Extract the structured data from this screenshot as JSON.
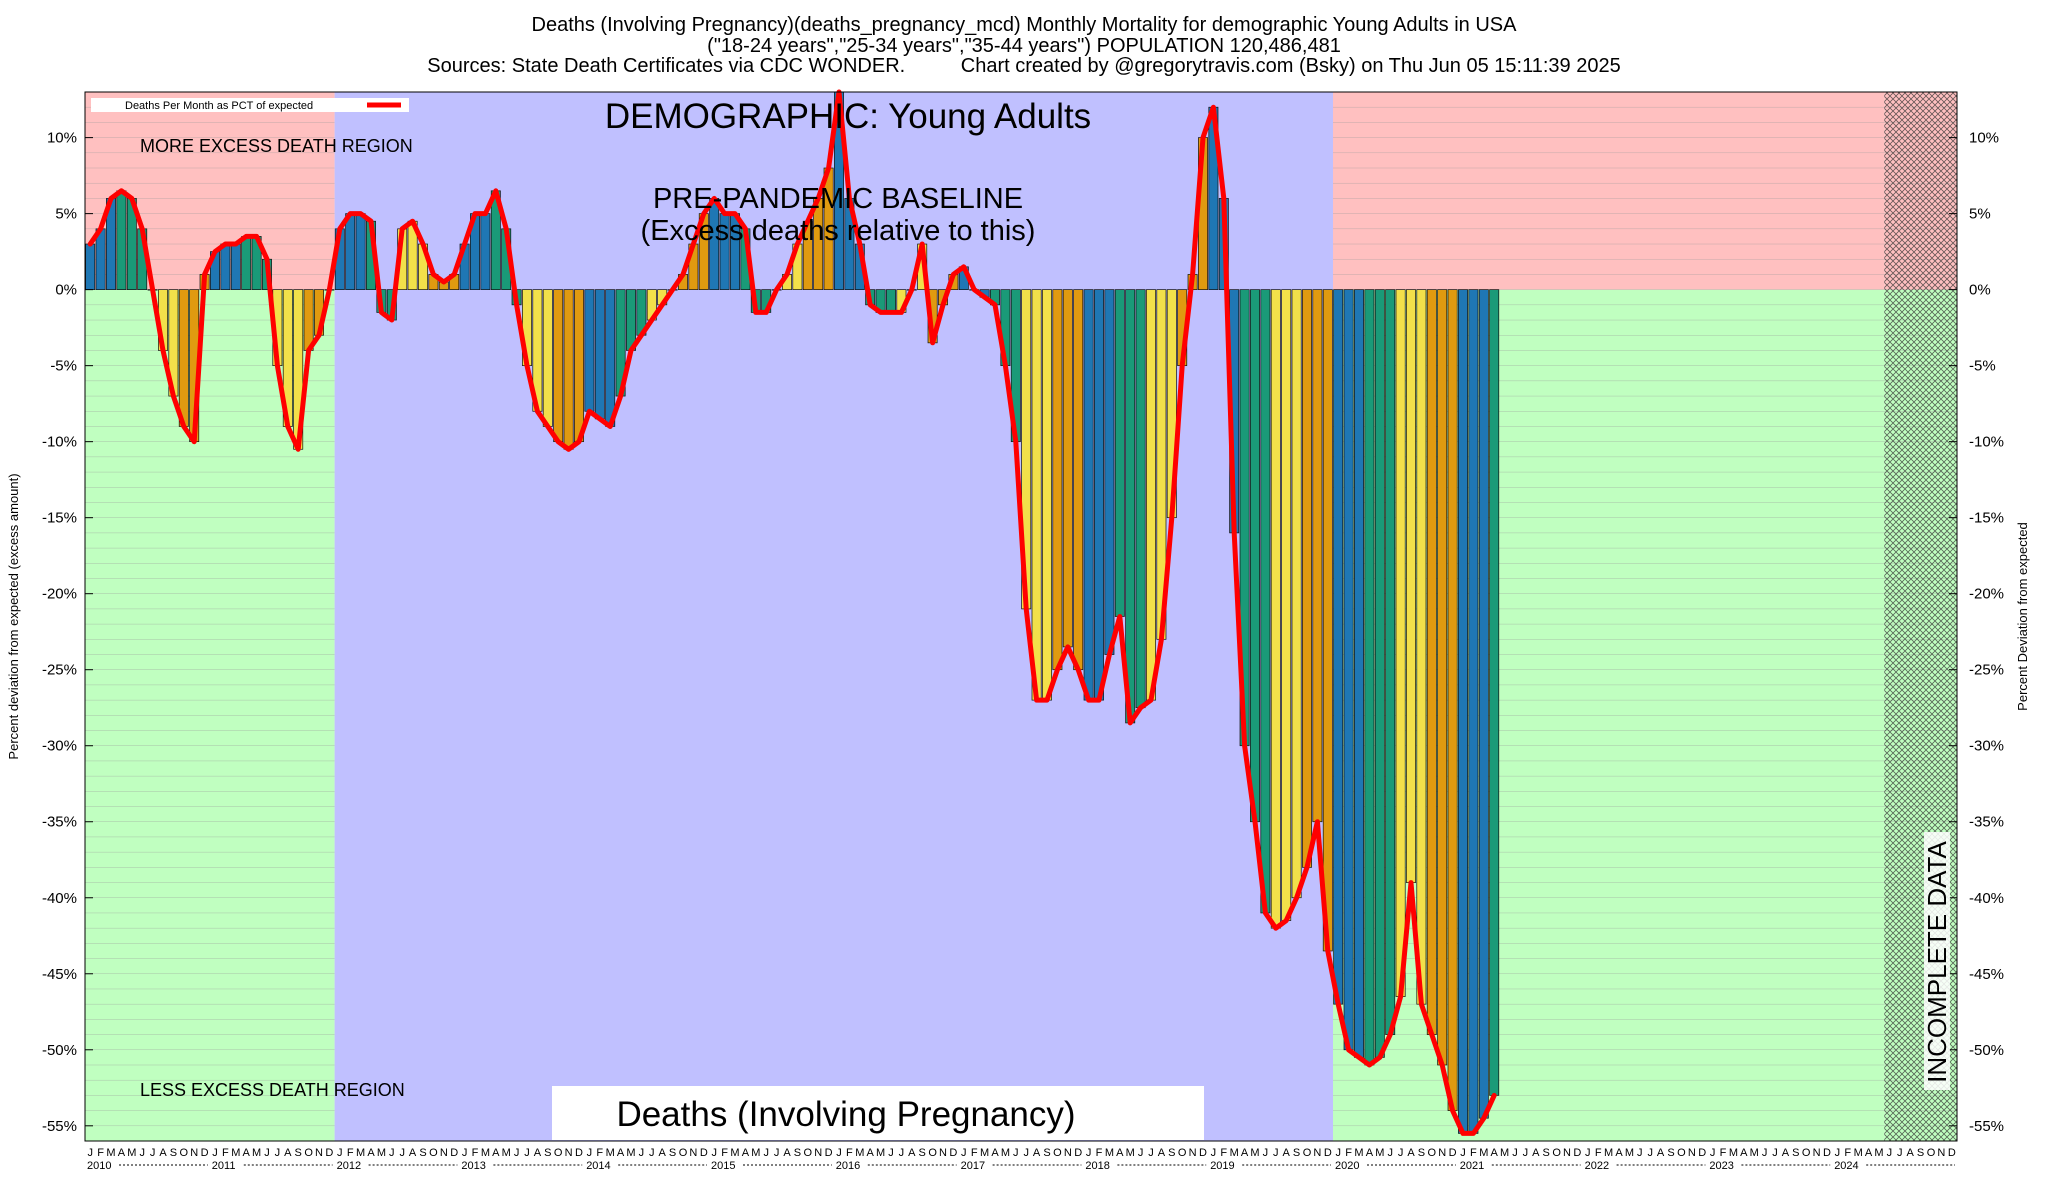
{
  "header": {
    "title_line1": "Deaths (Involving Pregnancy)(deaths_pregnancy_mcd) Monthly Mortality for demographic Young Adults in USA",
    "title_line2": "(\"18-24 years\",\"25-34 years\",\"35-44 years\") POPULATION 120,486,481",
    "title_line3": "Sources: State Death Certificates via CDC WONDER.          Chart created by @gregorytravis.com (Bsky) on Thu Jun 05 15:11:39 2025"
  },
  "labels": {
    "legend": "Deaths Per Month as PCT of expected",
    "demographic": "DEMOGRAPHIC: Young Adults",
    "baseline_line1": "PRE-PANDEMIC BASELINE",
    "baseline_line2": "(Excess deaths relative to this)",
    "more_excess": "MORE EXCESS DEATH REGION",
    "less_excess": "LESS EXCESS DEATH REGION",
    "bottom_caption": "Deaths (Involving Pregnancy)",
    "incomplete": "INCOMPLETE DATA",
    "month_letters": "JFMAMJJASOND"
  },
  "colors": {
    "line": "#ff0000",
    "excess_region": "#ffc0c0",
    "less_region": "#c0ffc0",
    "baseline_region": "#c0c0ff",
    "bar_palette": [
      "#1f77b4",
      "#1a9a78",
      "#f2e04a",
      "#e09a10"
    ]
  },
  "chart_data": {
    "type": "bar",
    "ylabel": "Percent deviation from expected (excess amount)",
    "ylabel_right": "Percent Deviation from expected",
    "ylim": [
      -56,
      13
    ],
    "yticks": [
      "10%",
      "5%",
      "0%",
      "-5%",
      "-10%",
      "-15%",
      "-20%",
      "-25%",
      "-30%",
      "-35%",
      "-40%",
      "-45%",
      "-50%",
      "-55%"
    ],
    "ytick_values": [
      10,
      5,
      0,
      -5,
      -10,
      -15,
      -20,
      -25,
      -30,
      -35,
      -40,
      -45,
      -50,
      -55
    ],
    "years": [
      "2010",
      "2011",
      "2012",
      "2013",
      "2014",
      "2015",
      "2016",
      "2017",
      "2018",
      "2019",
      "2020",
      "2021",
      "2022",
      "2023",
      "2024"
    ],
    "baseline_years": [
      "2012",
      "2013",
      "2014",
      "2015",
      "2016",
      "2017",
      "2018",
      "2019"
    ],
    "incomplete_from": "2024-06",
    "series": [
      {
        "name": "Deaths Per Month as PCT of expected",
        "values": [
          3,
          4,
          6,
          6.5,
          6,
          4,
          0,
          -4,
          -7,
          -9,
          -10,
          1,
          2.5,
          3,
          3,
          3.5,
          3.5,
          2,
          -5,
          -9,
          -10.5,
          -4,
          -3,
          0,
          4,
          5,
          5,
          4.5,
          -1.5,
          -2,
          4,
          4.5,
          3,
          1,
          0.5,
          1,
          3,
          5,
          5,
          6.5,
          4,
          -1,
          -5,
          -8,
          -9,
          -10,
          -10.5,
          -10,
          -8,
          -8.5,
          -9,
          -7,
          -4,
          -3,
          -2,
          -1,
          0,
          1,
          3,
          5,
          6,
          5,
          5,
          4,
          -1.5,
          -1.5,
          0,
          1,
          3,
          4.5,
          6,
          8,
          13,
          6,
          3,
          -1,
          -1.5,
          -1.5,
          -1.5,
          0,
          3,
          -3.5,
          -1,
          1,
          1.5,
          0,
          -0.5,
          -1,
          -5,
          -10,
          -21,
          -27,
          -27,
          -25,
          -23.5,
          -25,
          -27,
          -27,
          -24,
          -21.5,
          -28.5,
          -27.5,
          -27,
          -23,
          -15,
          -5,
          1,
          10,
          12,
          6,
          -16,
          -30,
          -35,
          -41,
          -42,
          -41.5,
          -40,
          -38,
          -35,
          -43.5,
          -47,
          -50,
          -50.5,
          -51,
          -50.5,
          -49,
          -46.5,
          -39,
          -47,
          -49,
          -51,
          -54,
          -55.5,
          -55.5,
          -54.5,
          -53
        ]
      }
    ]
  }
}
